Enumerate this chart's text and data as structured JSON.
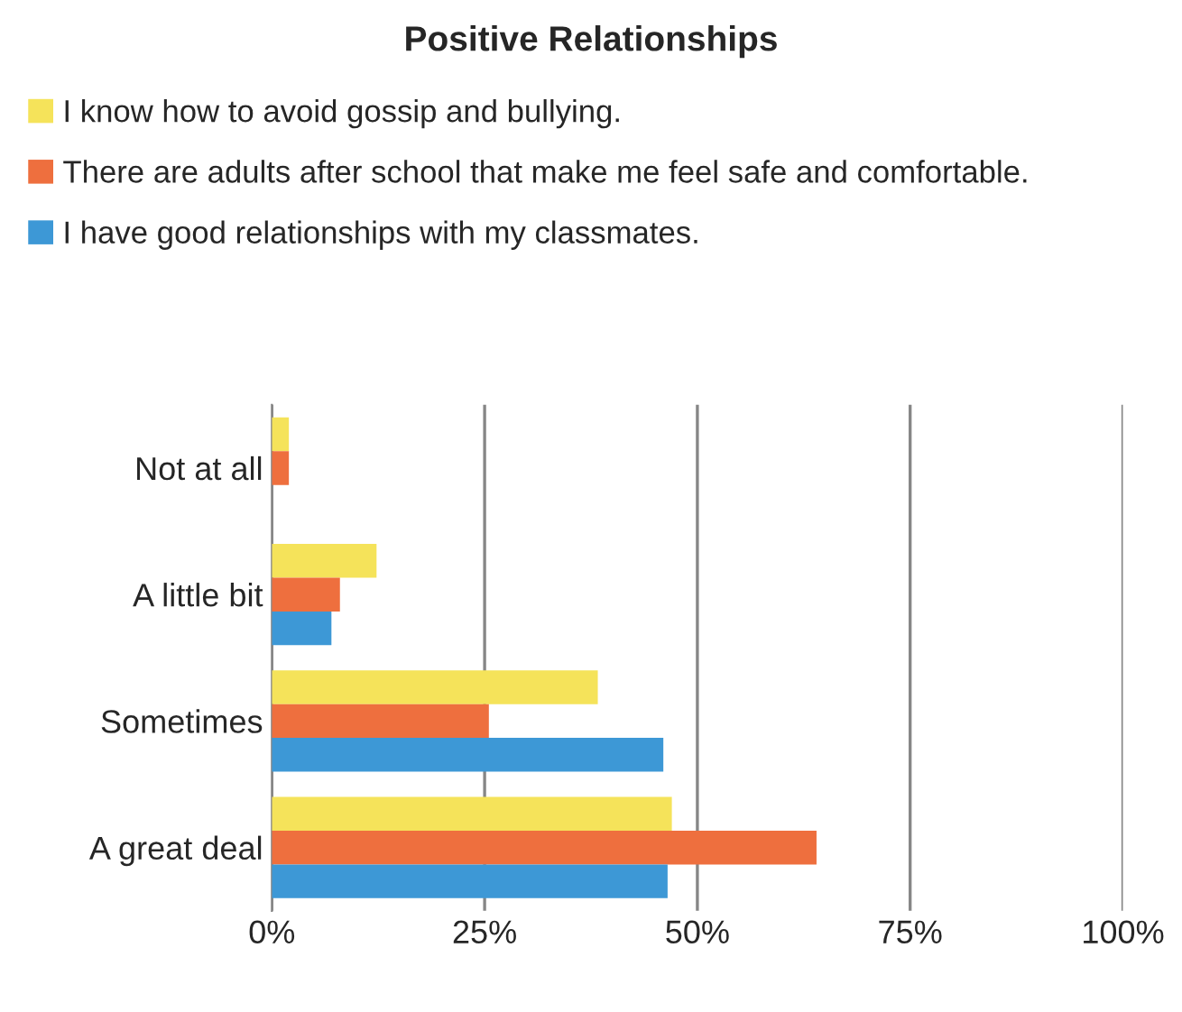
{
  "chart_data": {
    "type": "bar",
    "orientation": "horizontal",
    "title": "Positive Relationships",
    "categories": [
      "Not at all",
      "A little bit",
      "Sometimes",
      "A great deal"
    ],
    "series": [
      {
        "name": "I know how to avoid gossip and bullying.",
        "color": "#f5e35a",
        "values": [
          2,
          12.3,
          38.3,
          47
        ]
      },
      {
        "name": "There are adults after school that make me feel safe and comfortable.",
        "color": "#ee6f3e",
        "values": [
          2,
          8,
          25.5,
          64
        ]
      },
      {
        "name": "I have good relationships with my classmates.",
        "color": "#3d98d6",
        "values": [
          null,
          7,
          46,
          46.5
        ]
      }
    ],
    "xlim": [
      0,
      100
    ],
    "xticks": [
      {
        "value": 0,
        "label": "0%"
      },
      {
        "value": 25,
        "label": "25%"
      },
      {
        "value": 50,
        "label": "50%"
      },
      {
        "value": 75,
        "label": "75%"
      },
      {
        "value": 100,
        "label": "100%"
      }
    ],
    "grid": "x",
    "legend": "top"
  }
}
